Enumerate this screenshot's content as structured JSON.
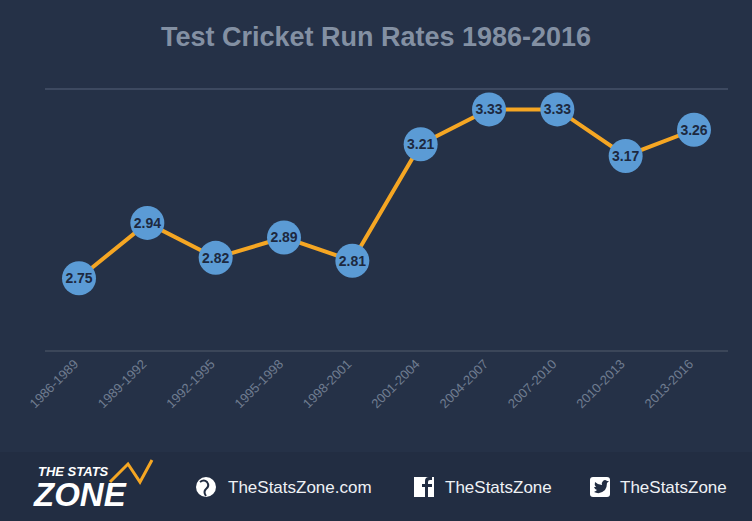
{
  "chart_data": {
    "type": "line",
    "title": "Test Cricket Run Rates 1986-2016",
    "categories": [
      "1986-1989",
      "1989-1992",
      "1992-1995",
      "1995-1998",
      "1998-2001",
      "2001-2004",
      "2004-2007",
      "2007-2010",
      "2010-2013",
      "2013-2016"
    ],
    "values": [
      2.75,
      2.94,
      2.82,
      2.89,
      2.81,
      3.21,
      3.33,
      3.33,
      3.17,
      3.26
    ],
    "color": "#f5a623",
    "marker": "circle",
    "ylim": [
      2.5,
      3.4
    ],
    "yticks": [
      2.5,
      2.6,
      2.7,
      2.8,
      2.9,
      3.0,
      3.1,
      3.2,
      3.3,
      3.4
    ],
    "grid": true,
    "data_labels": true,
    "tick_labels": "x"
  },
  "footer": {
    "logo": [
      "THE STATS",
      "ZONE"
    ],
    "links": [
      "TheStatsZone.com",
      "TheStatsZone",
      "TheStatsZone"
    ]
  }
}
